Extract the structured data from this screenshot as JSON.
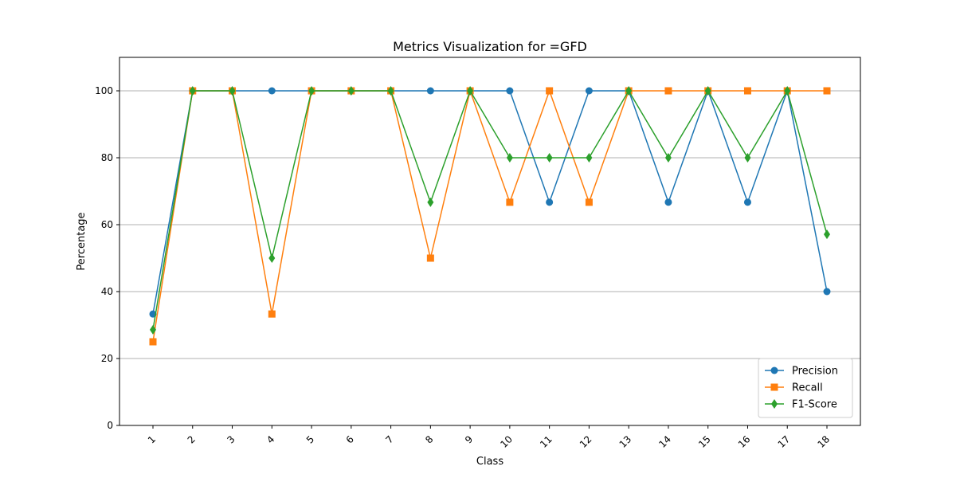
{
  "chart_data": {
    "type": "line",
    "title": "Metrics Visualization for =GFD",
    "xlabel": "Class",
    "ylabel": "Percentage",
    "categories": [
      "1",
      "2",
      "3",
      "4",
      "5",
      "6",
      "7",
      "8",
      "9",
      "10",
      "11",
      "12",
      "13",
      "14",
      "15",
      "16",
      "17",
      "18"
    ],
    "ylim": [
      0,
      110
    ],
    "yticks": [
      0,
      20,
      40,
      60,
      80,
      100
    ],
    "grid": "y-axis",
    "legend_position": "lower-right",
    "series": [
      {
        "name": "Precision",
        "color": "#1f77b4",
        "marker": "circle",
        "values": [
          33.3,
          100,
          100,
          100,
          100,
          100,
          100,
          100,
          100,
          100,
          66.7,
          100,
          100,
          66.7,
          100,
          66.7,
          100,
          40
        ]
      },
      {
        "name": "Recall",
        "color": "#ff7f0e",
        "marker": "square",
        "values": [
          25,
          100,
          100,
          33.3,
          100,
          100,
          100,
          50,
          100,
          66.7,
          100,
          66.7,
          100,
          100,
          100,
          100,
          100,
          100
        ]
      },
      {
        "name": "F1-Score",
        "color": "#2ca02c",
        "marker": "diamond",
        "values": [
          28.6,
          100,
          100,
          50,
          100,
          100,
          100,
          66.7,
          100,
          80,
          80,
          80,
          100,
          80,
          100,
          80,
          100,
          57.1
        ]
      }
    ]
  }
}
